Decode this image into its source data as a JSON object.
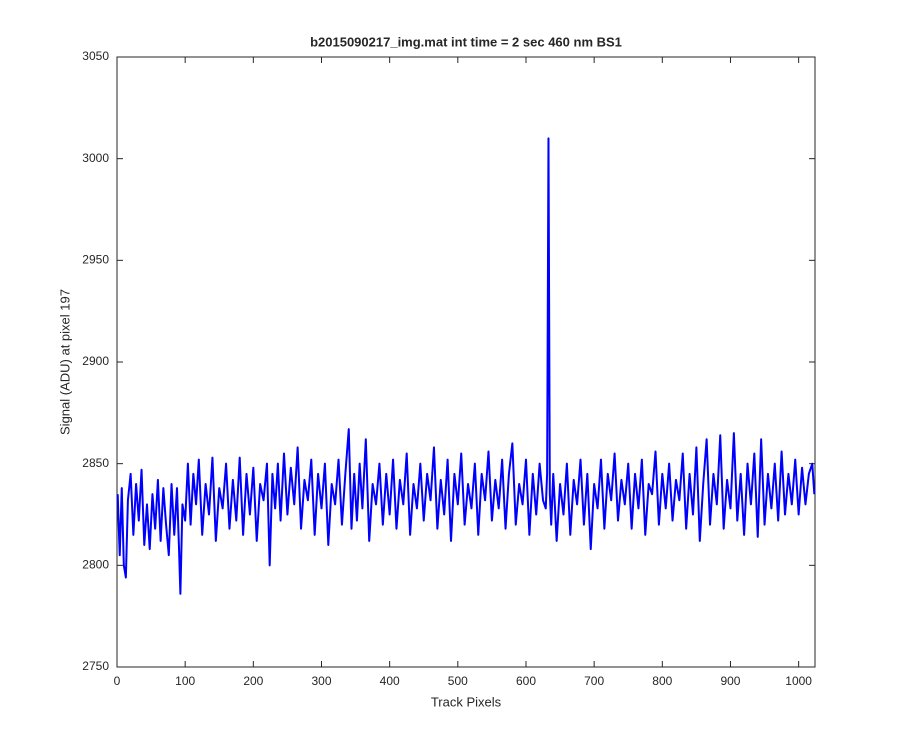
{
  "chart_data": {
    "type": "line",
    "title": "b2015090217_img.mat int time = 2 sec  460 nm BS1",
    "xlabel": "Track Pixels",
    "ylabel": "Signal (ADU) at pixel 197",
    "xlim": [
      0,
      1024
    ],
    "ylim": [
      2750,
      3050
    ],
    "xticks": [
      0,
      100,
      200,
      300,
      400,
      500,
      600,
      700,
      800,
      900,
      1000
    ],
    "yticks": [
      2750,
      2800,
      2850,
      2900,
      2950,
      3000,
      3050
    ],
    "grid": false,
    "x": [
      1,
      4,
      7,
      10,
      13,
      16,
      20,
      24,
      28,
      32,
      36,
      40,
      44,
      48,
      52,
      56,
      60,
      64,
      68,
      72,
      76,
      80,
      84,
      88,
      91,
      93,
      96,
      100,
      104,
      108,
      112,
      116,
      120,
      125,
      130,
      135,
      140,
      145,
      150,
      155,
      160,
      165,
      170,
      175,
      180,
      185,
      190,
      195,
      200,
      205,
      210,
      215,
      220,
      224,
      228,
      232,
      236,
      240,
      245,
      250,
      255,
      260,
      265,
      270,
      275,
      280,
      285,
      290,
      295,
      300,
      305,
      310,
      315,
      320,
      325,
      330,
      335,
      340,
      344,
      348,
      352,
      356,
      360,
      365,
      370,
      375,
      380,
      385,
      390,
      395,
      400,
      405,
      410,
      415,
      420,
      425,
      430,
      435,
      440,
      445,
      450,
      455,
      460,
      465,
      470,
      475,
      480,
      485,
      490,
      495,
      500,
      505,
      510,
      515,
      520,
      525,
      530,
      535,
      540,
      545,
      550,
      555,
      560,
      565,
      570,
      575,
      580,
      585,
      590,
      595,
      600,
      605,
      610,
      615,
      620,
      625,
      629,
      631,
      633,
      635,
      637,
      640,
      645,
      650,
      655,
      660,
      665,
      670,
      675,
      680,
      685,
      690,
      695,
      700,
      705,
      710,
      715,
      720,
      725,
      730,
      735,
      740,
      745,
      750,
      755,
      760,
      765,
      770,
      775,
      780,
      785,
      790,
      795,
      800,
      805,
      810,
      815,
      820,
      825,
      830,
      835,
      840,
      845,
      850,
      855,
      860,
      865,
      870,
      875,
      880,
      885,
      890,
      895,
      900,
      905,
      910,
      915,
      920,
      925,
      930,
      935,
      940,
      945,
      950,
      955,
      960,
      965,
      970,
      975,
      980,
      985,
      990,
      995,
      1000,
      1005,
      1010,
      1015,
      1020,
      1023
    ],
    "series": [
      {
        "name": "signal",
        "color": "#0000ff",
        "values": [
          2835,
          2805,
          2838,
          2800,
          2794,
          2832,
          2845,
          2815,
          2840,
          2822,
          2847,
          2810,
          2830,
          2808,
          2835,
          2818,
          2842,
          2812,
          2838,
          2820,
          2805,
          2840,
          2815,
          2838,
          2808,
          2786,
          2830,
          2822,
          2850,
          2820,
          2845,
          2830,
          2852,
          2815,
          2840,
          2825,
          2853,
          2812,
          2838,
          2828,
          2850,
          2818,
          2842,
          2822,
          2853,
          2815,
          2845,
          2825,
          2848,
          2812,
          2840,
          2832,
          2850,
          2800,
          2845,
          2828,
          2850,
          2822,
          2855,
          2825,
          2848,
          2830,
          2858,
          2818,
          2842,
          2832,
          2852,
          2815,
          2845,
          2828,
          2850,
          2810,
          2840,
          2830,
          2852,
          2820,
          2845,
          2867,
          2818,
          2845,
          2822,
          2850,
          2828,
          2862,
          2812,
          2840,
          2830,
          2850,
          2820,
          2845,
          2825,
          2852,
          2818,
          2842,
          2830,
          2855,
          2815,
          2840,
          2828,
          2850,
          2822,
          2845,
          2832,
          2858,
          2818,
          2842,
          2825,
          2852,
          2812,
          2845,
          2830,
          2855,
          2820,
          2840,
          2828,
          2850,
          2815,
          2845,
          2832,
          2856,
          2822,
          2842,
          2828,
          2852,
          2818,
          2845,
          2860,
          2820,
          2840,
          2830,
          2852,
          2815,
          2845,
          2825,
          2850,
          2832,
          2828,
          2845,
          3010,
          2835,
          2820,
          2845,
          2812,
          2840,
          2825,
          2850,
          2815,
          2842,
          2830,
          2852,
          2820,
          2845,
          2808,
          2840,
          2828,
          2852,
          2818,
          2845,
          2832,
          2855,
          2822,
          2842,
          2830,
          2850,
          2818,
          2845,
          2828,
          2852,
          2815,
          2840,
          2835,
          2856,
          2820,
          2845,
          2828,
          2850,
          2822,
          2842,
          2832,
          2855,
          2818,
          2845,
          2825,
          2858,
          2812,
          2840,
          2862,
          2820,
          2845,
          2830,
          2864,
          2818,
          2842,
          2828,
          2865,
          2822,
          2845,
          2815,
          2850,
          2830,
          2855,
          2814,
          2862,
          2820,
          2845,
          2828,
          2850,
          2822,
          2856,
          2825,
          2845,
          2830,
          2852,
          2825,
          2848,
          2830,
          2845,
          2850,
          2835
        ]
      }
    ]
  }
}
